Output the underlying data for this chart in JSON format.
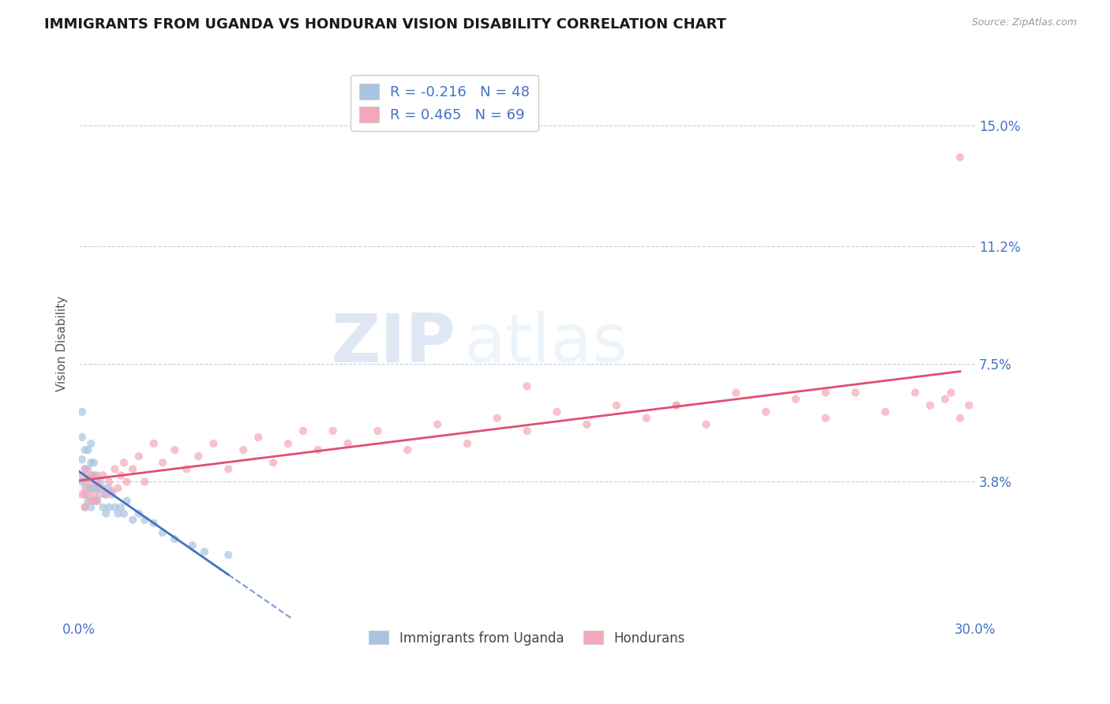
{
  "title": "IMMIGRANTS FROM UGANDA VS HONDURAN VISION DISABILITY CORRELATION CHART",
  "source": "Source: ZipAtlas.com",
  "ylabel": "Vision Disability",
  "xlim": [
    0.0,
    0.3
  ],
  "ylim": [
    -0.005,
    0.168
  ],
  "yticks": [
    0.038,
    0.075,
    0.112,
    0.15
  ],
  "ytick_labels": [
    "3.8%",
    "7.5%",
    "11.2%",
    "15.0%"
  ],
  "xtick_positions": [
    0.0,
    0.3
  ],
  "xtick_labels": [
    "0.0%",
    "30.0%"
  ],
  "uganda_color": "#a8c4e0",
  "honduran_color": "#f4a7b9",
  "uganda_line_color": "#4472c4",
  "honduran_line_color": "#e05070",
  "uganda_R": -0.216,
  "uganda_N": 48,
  "honduran_R": 0.465,
  "honduran_N": 69,
  "legend_label_uganda": "Immigrants from Uganda",
  "legend_label_honduran": "Hondurans",
  "watermark_zip": "ZIP",
  "watermark_atlas": "atlas",
  "title_fontsize": 13,
  "label_color": "#4472c4",
  "scatter_alpha": 0.7,
  "scatter_size": 55,
  "uganda_points_x": [
    0.001,
    0.001,
    0.001,
    0.001,
    0.002,
    0.002,
    0.002,
    0.002,
    0.002,
    0.003,
    0.003,
    0.003,
    0.003,
    0.004,
    0.004,
    0.004,
    0.004,
    0.004,
    0.005,
    0.005,
    0.005,
    0.005,
    0.006,
    0.006,
    0.006,
    0.007,
    0.007,
    0.008,
    0.008,
    0.009,
    0.009,
    0.01,
    0.01,
    0.011,
    0.012,
    0.013,
    0.014,
    0.015,
    0.016,
    0.018,
    0.02,
    0.022,
    0.025,
    0.028,
    0.032,
    0.038,
    0.042,
    0.05
  ],
  "uganda_points_y": [
    0.06,
    0.052,
    0.045,
    0.038,
    0.048,
    0.042,
    0.038,
    0.034,
    0.03,
    0.048,
    0.042,
    0.036,
    0.032,
    0.05,
    0.044,
    0.04,
    0.036,
    0.03,
    0.044,
    0.04,
    0.036,
    0.032,
    0.04,
    0.036,
    0.032,
    0.038,
    0.034,
    0.036,
    0.03,
    0.034,
    0.028,
    0.036,
    0.03,
    0.034,
    0.03,
    0.028,
    0.03,
    0.028,
    0.032,
    0.026,
    0.028,
    0.026,
    0.025,
    0.022,
    0.02,
    0.018,
    0.016,
    0.015
  ],
  "honduran_points_x": [
    0.001,
    0.001,
    0.002,
    0.002,
    0.002,
    0.003,
    0.003,
    0.004,
    0.004,
    0.005,
    0.005,
    0.006,
    0.006,
    0.007,
    0.008,
    0.009,
    0.01,
    0.011,
    0.012,
    0.013,
    0.014,
    0.015,
    0.016,
    0.018,
    0.02,
    0.022,
    0.025,
    0.028,
    0.032,
    0.036,
    0.04,
    0.045,
    0.05,
    0.055,
    0.06,
    0.065,
    0.07,
    0.075,
    0.08,
    0.085,
    0.09,
    0.1,
    0.11,
    0.12,
    0.13,
    0.14,
    0.15,
    0.16,
    0.17,
    0.18,
    0.19,
    0.2,
    0.21,
    0.22,
    0.23,
    0.24,
    0.25,
    0.26,
    0.27,
    0.28,
    0.285,
    0.29,
    0.292,
    0.295,
    0.298,
    0.15,
    0.2,
    0.25,
    0.295
  ],
  "honduran_points_y": [
    0.04,
    0.034,
    0.042,
    0.036,
    0.03,
    0.04,
    0.034,
    0.038,
    0.032,
    0.04,
    0.034,
    0.038,
    0.032,
    0.036,
    0.04,
    0.034,
    0.038,
    0.035,
    0.042,
    0.036,
    0.04,
    0.044,
    0.038,
    0.042,
    0.046,
    0.038,
    0.05,
    0.044,
    0.048,
    0.042,
    0.046,
    0.05,
    0.042,
    0.048,
    0.052,
    0.044,
    0.05,
    0.054,
    0.048,
    0.054,
    0.05,
    0.054,
    0.048,
    0.056,
    0.05,
    0.058,
    0.054,
    0.06,
    0.056,
    0.062,
    0.058,
    0.062,
    0.056,
    0.066,
    0.06,
    0.064,
    0.058,
    0.066,
    0.06,
    0.066,
    0.062,
    0.064,
    0.066,
    0.058,
    0.062,
    0.068,
    0.062,
    0.066,
    0.14
  ]
}
